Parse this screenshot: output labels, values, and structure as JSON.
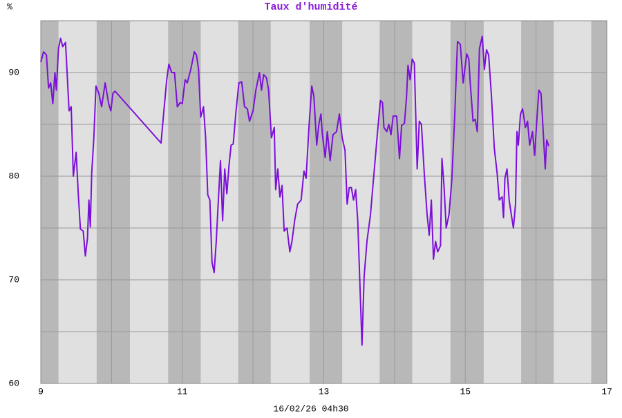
{
  "chart_data": {
    "type": "line",
    "title": "Taux d'humidité",
    "y_unit": "%",
    "x_label": "16/02/26 04h30",
    "xlim": [
      9,
      17
    ],
    "xticks": [
      9,
      11,
      13,
      15,
      17
    ],
    "x_minor_grid": [
      10,
      12,
      14,
      16
    ],
    "ylim": [
      60,
      95
    ],
    "yticks": [
      60,
      70,
      80,
      90
    ],
    "y_minor_grid": [
      65,
      75,
      85
    ],
    "grid": true,
    "night_bands": [
      [
        9,
        9.25
      ],
      [
        9.79,
        10.26
      ],
      [
        10.8,
        11.26
      ],
      [
        11.79,
        12.25
      ],
      [
        12.8,
        13.26
      ],
      [
        13.79,
        14.25
      ],
      [
        14.79,
        15.26
      ],
      [
        15.79,
        16.25
      ],
      [
        16.78,
        17
      ]
    ],
    "night_color": "#b8b8b8",
    "day_color": "#e0e0e0",
    "series": [
      {
        "name": "Taux d'humidité",
        "color": "#7b10d8",
        "x": [
          9.0,
          9.04,
          9.08,
          9.11,
          9.14,
          9.17,
          9.2,
          9.22,
          9.25,
          9.28,
          9.31,
          9.35,
          9.4,
          9.43,
          9.46,
          9.5,
          9.53,
          9.56,
          9.6,
          9.63,
          9.66,
          9.68,
          9.7,
          9.72,
          9.75,
          9.78,
          9.82,
          9.86,
          9.91,
          9.96,
          9.99,
          10.02,
          10.05,
          10.7,
          10.74,
          10.78,
          10.81,
          10.85,
          10.89,
          10.93,
          10.97,
          11.0,
          11.04,
          11.07,
          11.12,
          11.17,
          11.2,
          11.23,
          11.26,
          11.3,
          11.33,
          11.36,
          11.39,
          11.42,
          11.45,
          11.48,
          11.51,
          11.54,
          11.57,
          11.6,
          11.63,
          11.66,
          11.69,
          11.72,
          11.76,
          11.8,
          11.84,
          11.88,
          11.92,
          11.95,
          12.0,
          12.04,
          12.09,
          12.12,
          12.15,
          12.19,
          12.22,
          12.26,
          12.3,
          12.32,
          12.35,
          12.38,
          12.41,
          12.44,
          12.48,
          12.52,
          12.55,
          12.59,
          12.63,
          12.68,
          12.72,
          12.75,
          12.79,
          12.83,
          12.86,
          12.9,
          12.93,
          12.96,
          12.98,
          13.02,
          13.05,
          13.09,
          13.13,
          13.18,
          13.22,
          13.26,
          13.3,
          13.33,
          13.36,
          13.39,
          13.42,
          13.45,
          13.48,
          13.51,
          13.54,
          13.57,
          13.61,
          13.66,
          13.71,
          13.76,
          13.8,
          13.83,
          13.85,
          13.89,
          13.92,
          13.95,
          13.98,
          14.03,
          14.07,
          14.1,
          14.14,
          14.17,
          14.19,
          14.22,
          14.25,
          14.28,
          14.32,
          14.35,
          14.38,
          14.42,
          14.46,
          14.49,
          14.52,
          14.55,
          14.58,
          14.61,
          14.65,
          14.67,
          14.7,
          14.73,
          14.77,
          14.81,
          14.85,
          14.89,
          14.93,
          14.97,
          15.02,
          15.05,
          15.07,
          15.11,
          15.14,
          15.17,
          15.2,
          15.24,
          15.27,
          15.3,
          15.33,
          15.37,
          15.41,
          15.45,
          15.48,
          15.52,
          15.54,
          15.56,
          15.59,
          15.62,
          15.65,
          15.68,
          15.71,
          15.73,
          15.75,
          15.78,
          15.81,
          15.85,
          15.88,
          15.91,
          15.95,
          15.98,
          16.01,
          16.04,
          16.07,
          16.09,
          16.13,
          16.15,
          16.18
        ],
        "values": [
          91.0,
          92.0,
          91.7,
          88.5,
          89,
          87,
          90,
          88.3,
          92.3,
          93.3,
          92.5,
          92.9,
          86.3,
          86.7,
          80,
          82.3,
          78.3,
          74.9,
          74.7,
          72.3,
          74,
          77.7,
          75.1,
          80.3,
          83.7,
          88.7,
          88,
          86.7,
          89,
          87,
          86.3,
          88,
          88.2,
          83.2,
          86.3,
          89.3,
          90.8,
          90,
          90,
          86.7,
          87.1,
          87,
          89.3,
          89,
          90.3,
          92,
          91.7,
          90.3,
          85.7,
          86.7,
          83.7,
          78.2,
          77.7,
          71.7,
          70.7,
          73.7,
          77.7,
          81.5,
          75.7,
          80.7,
          78.3,
          81,
          83,
          83.1,
          86.3,
          89,
          89.1,
          86.7,
          86.5,
          85.3,
          86.3,
          88.3,
          90,
          88.3,
          89.8,
          89.5,
          88.3,
          83.7,
          84.7,
          78.7,
          80.7,
          78,
          79.1,
          74.7,
          75,
          72.7,
          73.7,
          75.8,
          77.3,
          77.7,
          80.5,
          79.8,
          84.7,
          88.7,
          87.7,
          83,
          85,
          86,
          84,
          81.8,
          84.3,
          81.5,
          84,
          84.3,
          86,
          83.7,
          82.5,
          77.3,
          78.9,
          78.9,
          77.7,
          78.7,
          75.7,
          69.7,
          63.7,
          70.3,
          73.7,
          76.3,
          80.3,
          84.3,
          87.3,
          87.1,
          84.7,
          84.3,
          85,
          84,
          85.8,
          85.8,
          81.7,
          84.9,
          85.1,
          87.7,
          90.7,
          89.3,
          91.3,
          90.9,
          80.7,
          85.3,
          85,
          80.3,
          76.3,
          74.3,
          77.7,
          72,
          73.7,
          72.7,
          73.3,
          81.7,
          79,
          75,
          76.3,
          79.7,
          85.7,
          93,
          92.7,
          89,
          91.8,
          91.3,
          89,
          85.3,
          85.5,
          84.3,
          92.3,
          93.5,
          90.3,
          92.2,
          91.7,
          87.7,
          82.7,
          80.3,
          77.7,
          78,
          76,
          79.8,
          80.7,
          77.7,
          76.3,
          75,
          77.3,
          84.3,
          83,
          86,
          86.5,
          84.7,
          85.3,
          83,
          84.3,
          82,
          85.3,
          88.3,
          88,
          85.7,
          80.7,
          83.5,
          82.9
        ]
      }
    ]
  }
}
